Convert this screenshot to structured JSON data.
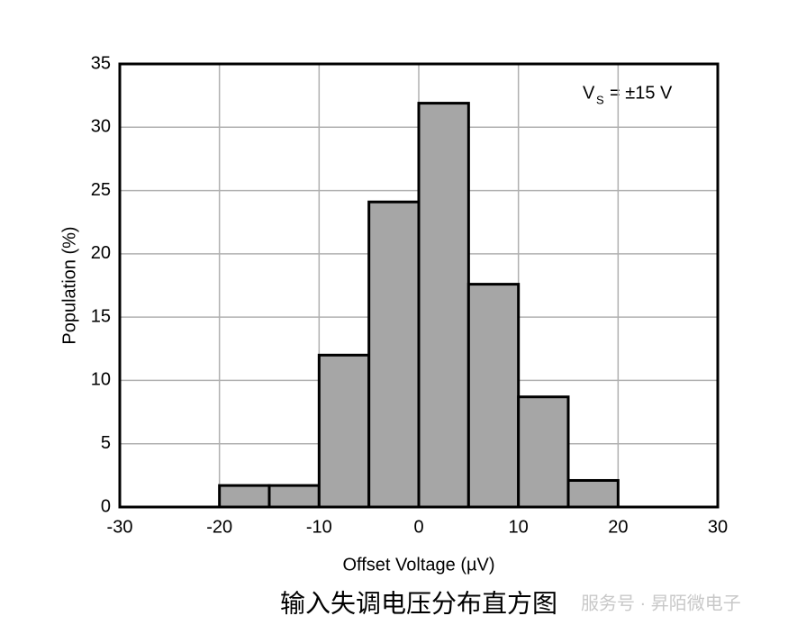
{
  "chart_data": {
    "type": "histogram",
    "x_label": "Offset Voltage (µV)",
    "y_label": "Population (%)",
    "bins": [
      -20,
      -15,
      -10,
      -5,
      0,
      5,
      10,
      15,
      20
    ],
    "values": [
      1.7,
      1.7,
      12,
      24.1,
      31.9,
      17.6,
      8.7,
      2.1
    ],
    "color": "#a6a6a6",
    "xlim": [
      -30,
      30
    ],
    "xticks": [
      -30,
      -20,
      -10,
      0,
      10,
      20,
      30
    ],
    "ylim": [
      0,
      35
    ],
    "yticks": [
      0,
      5,
      10,
      15,
      20,
      25,
      30,
      35
    ],
    "grid": true,
    "annotation": {
      "symbol": "V",
      "subscript": "S",
      "text": "= ±15 V"
    },
    "caption": "输入失调电压分布直方图",
    "watermark": "服务号 · 昇陌微电子"
  }
}
